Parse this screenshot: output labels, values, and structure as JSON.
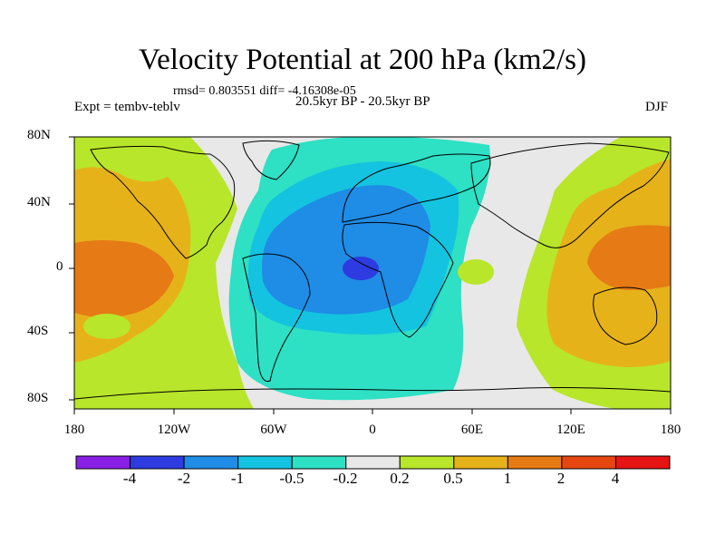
{
  "title": "Velocity Potential at 200 hPa (km2/s)",
  "stats": "rmsd= 0.803551 diff= -4.16308e-05",
  "left_subtitle": "Expt = tembv-teblv",
  "center_subtitle": "20.5kyr BP - 20.5kyr BP",
  "right_subtitle": "DJF",
  "lat_labels": [
    "80N",
    "40N",
    "0",
    "40S",
    "80S"
  ],
  "lon_labels": [
    "180",
    "120W",
    "60W",
    "0",
    "60E",
    "120E",
    "180"
  ],
  "colorbar": {
    "labels": [
      "-4",
      "-2",
      "-1",
      "-0.5",
      "-0.2",
      "0.2",
      "0.5",
      "1",
      "2",
      "4"
    ],
    "colors": [
      "#8a1fe6",
      "#2d3be0",
      "#1f8ce6",
      "#14c3e0",
      "#2ee0c4",
      "#e8e8e8",
      "#b8e62a",
      "#e6b21a",
      "#e67a14",
      "#e6460f",
      "#e61414"
    ]
  },
  "map_colors": {
    "neutral": "#e8e8e8",
    "pos_weak": "#b8e62a",
    "pos_mid": "#e6b21a",
    "pos_strong": "#e67a14",
    "neg_weak": "#2ee0c4",
    "neg_mid": "#14c3e0",
    "neg_strong": "#1f8ce6",
    "neg_core": "#2d3be0"
  }
}
